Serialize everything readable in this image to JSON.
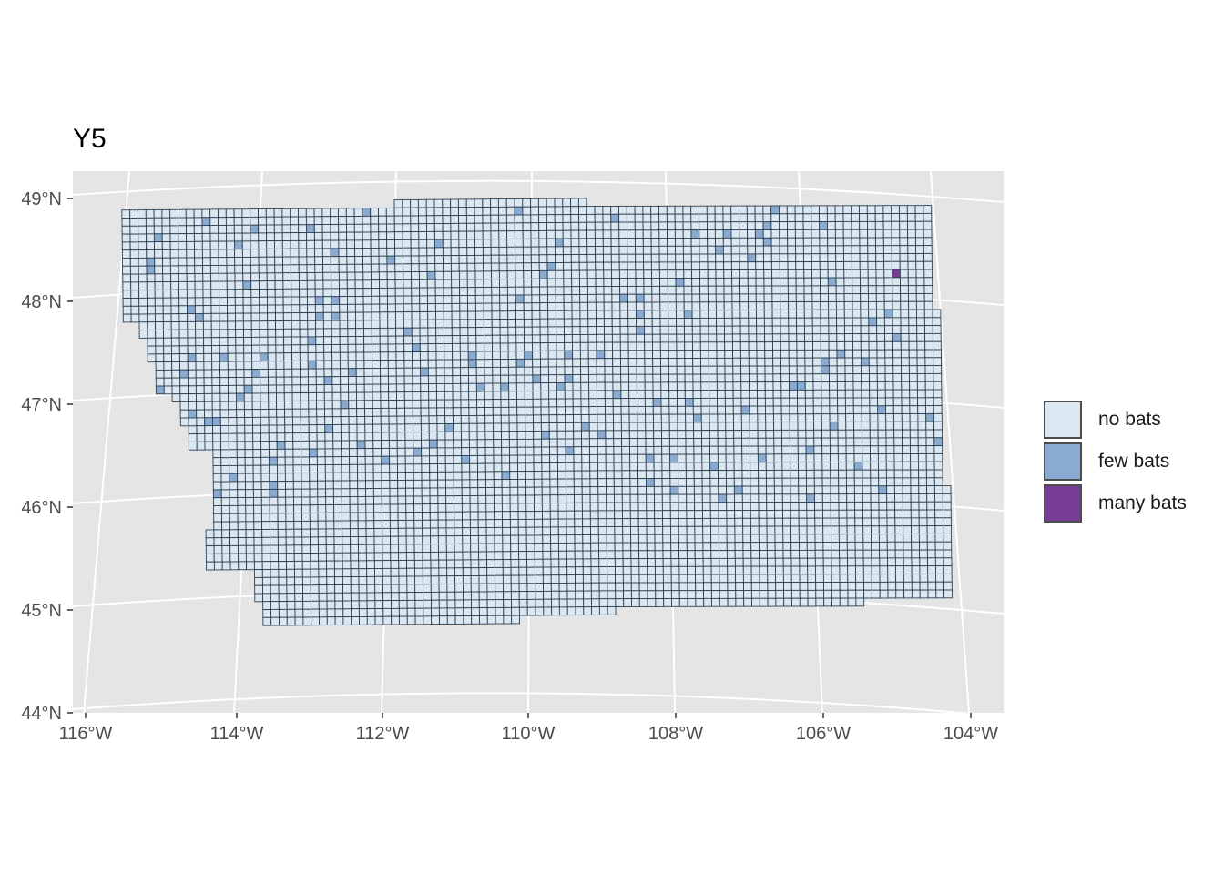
{
  "title": "Y5",
  "chart_data": {
    "type": "map-grid",
    "title": "Y5",
    "x_ticks": [
      "116°W",
      "114°W",
      "112°W",
      "110°W",
      "108°W",
      "106°W",
      "104°W"
    ],
    "y_ticks": [
      "44°N",
      "45°N",
      "46°N",
      "47°N",
      "48°N",
      "49°N"
    ],
    "xlim": [
      -116.2,
      -103.7
    ],
    "ylim": [
      44,
      49.3
    ],
    "grid": true,
    "legend_position": "right",
    "legend": [
      {
        "label": "no bats",
        "color": "#dce8f1"
      },
      {
        "label": "few bats",
        "color": "#8aabd1"
      },
      {
        "label": "many bats",
        "color": "#763c98"
      }
    ],
    "panel_background": "#e5e5e5",
    "gridline_color": "#ffffff",
    "cell_border_color": "#2f4050",
    "categories": {
      "few_bats_count": 120,
      "many_bats_count": 1
    }
  }
}
